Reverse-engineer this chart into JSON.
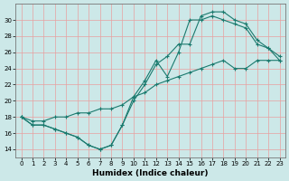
{
  "xlabel": "Humidex (Indice chaleur)",
  "background_color": "#cce8e8",
  "grid_color": "#e8a0a0",
  "line_color": "#1a7a6e",
  "xlim": [
    -0.5,
    23.5
  ],
  "ylim": [
    13,
    32
  ],
  "xticks": [
    0,
    1,
    2,
    3,
    4,
    5,
    6,
    7,
    8,
    9,
    10,
    11,
    12,
    13,
    14,
    15,
    16,
    17,
    18,
    19,
    20,
    21,
    22,
    23
  ],
  "yticks": [
    14,
    16,
    18,
    20,
    22,
    24,
    26,
    28,
    30
  ],
  "series1_x": [
    0,
    1,
    2,
    3,
    4,
    5,
    6,
    7,
    8,
    9,
    10,
    11,
    12,
    13,
    14,
    15,
    16,
    17,
    18,
    19,
    20,
    21,
    22,
    23
  ],
  "series1_y": [
    18.0,
    17.0,
    17.0,
    16.5,
    16.0,
    15.5,
    14.5,
    14.0,
    14.5,
    17.0,
    20.0,
    22.0,
    24.5,
    25.5,
    27.0,
    27.0,
    30.5,
    31.0,
    31.0,
    30.0,
    29.5,
    27.5,
    26.5,
    25.0
  ],
  "series2_x": [
    0,
    1,
    2,
    3,
    4,
    5,
    6,
    7,
    8,
    9,
    10,
    11,
    12,
    13,
    14,
    15,
    16,
    17,
    18,
    19,
    20,
    21,
    22,
    23
  ],
  "series2_y": [
    18.0,
    17.0,
    17.0,
    16.5,
    16.0,
    15.5,
    14.5,
    14.0,
    14.5,
    17.0,
    20.5,
    22.5,
    25.0,
    23.0,
    26.0,
    30.0,
    30.0,
    30.5,
    30.0,
    29.5,
    29.0,
    27.0,
    26.5,
    25.5
  ],
  "series3_x": [
    0,
    1,
    2,
    3,
    4,
    5,
    6,
    7,
    8,
    9,
    10,
    11,
    12,
    13,
    14,
    15,
    16,
    17,
    18,
    19,
    20,
    21,
    22,
    23
  ],
  "series3_y": [
    18.0,
    17.5,
    17.5,
    18.0,
    18.0,
    18.5,
    18.5,
    19.0,
    19.0,
    19.5,
    20.5,
    21.0,
    22.0,
    22.5,
    23.0,
    23.5,
    24.0,
    24.5,
    25.0,
    24.0,
    24.0,
    25.0,
    25.0,
    25.0
  ]
}
